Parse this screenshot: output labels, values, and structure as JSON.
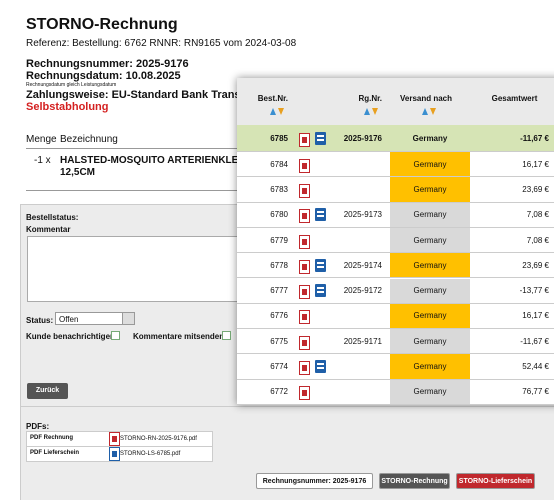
{
  "document": {
    "title": "STORNO-Rechnung",
    "reference": "Referenz: Bestellung: 6762 RNNR: RN9165 vom 2024-03-08",
    "invoice_number": "Rechnungsnummer: 2025-9176",
    "invoice_date": "Rechnungsdatum: 10.08.2025",
    "date_note": "Rechnungsdatum gleich Leistungsdatum",
    "payment": "Zahlungsweise: EU-Standard Bank Transfer",
    "shipping": "Selbstabholung",
    "items_header": {
      "qty": "Menge",
      "desc": "Bezeichnung"
    },
    "items": [
      {
        "qty": "-1 x",
        "desc": "HALSTED-MOSQUITO ARTERIENKLEMME GER",
        "desc_line2": "12,5CM"
      }
    ]
  },
  "form": {
    "status_heading": "Bestellstatus:",
    "comment_label": "Kommentar",
    "status_label": "Status:",
    "status_value": "Offen",
    "notify_label": "Kunde benachrichtigen:",
    "send_comments_label": "Kommentare mitsenden:",
    "back_button": "Zurück"
  },
  "pdfs": {
    "heading": "PDFs:",
    "rows": [
      {
        "label": "PDF Rechnung",
        "file": "STORNO-RN-2025-9176.pdf",
        "color": "#c0282d"
      },
      {
        "label": "PDF Lieferschein",
        "file": "STORNO-LS-6785.pdf",
        "color": "#1f5fa8"
      }
    ]
  },
  "footer_buttons": [
    {
      "label": "Rechnungsnummer: 2025-9176",
      "color": "#ffffff"
    },
    {
      "label": "STORNO-Rechnung",
      "color": "#555555"
    },
    {
      "label": "STORNO-Lieferschein",
      "color": "#c0282d"
    }
  ],
  "orders": {
    "columns": [
      "Best.Nr.",
      "Rg.Nr.",
      "Versand nach",
      "Gesamtwert"
    ],
    "rows": [
      {
        "order": "6785",
        "invoice": "2025-9176",
        "country": "Germany",
        "total": "-11,67 €",
        "delivery_note": true,
        "country_color": "#d6e4b5",
        "row_color": "#d6e4b5"
      },
      {
        "order": "6784",
        "invoice": null,
        "country": "Germany",
        "total": "16,17 €",
        "delivery_note": false,
        "country_color": "#ffc000",
        "row_color": "#ffffff"
      },
      {
        "order": "6783",
        "invoice": null,
        "country": "Germany",
        "total": "23,69 €",
        "delivery_note": false,
        "country_color": "#ffc000",
        "row_color": "#ffffff"
      },
      {
        "order": "6780",
        "invoice": "2025-9173",
        "country": "Germany",
        "total": "7,08 €",
        "delivery_note": true,
        "country_color": "#d9d9d9",
        "row_color": "#ffffff"
      },
      {
        "order": "6779",
        "invoice": null,
        "country": "Germany",
        "total": "7,08 €",
        "delivery_note": false,
        "country_color": "#d9d9d9",
        "row_color": "#ffffff"
      },
      {
        "order": "6778",
        "invoice": "2025-9174",
        "country": "Germany",
        "total": "23,69 €",
        "delivery_note": true,
        "country_color": "#ffc000",
        "row_color": "#ffffff"
      },
      {
        "order": "6777",
        "invoice": "2025-9172",
        "country": "Germany",
        "total": "-13,77 €",
        "delivery_note": true,
        "country_color": "#d9d9d9",
        "row_color": "#ffffff"
      },
      {
        "order": "6776",
        "invoice": null,
        "country": "Germany",
        "total": "16,17 €",
        "delivery_note": false,
        "country_color": "#ffc000",
        "row_color": "#ffffff"
      },
      {
        "order": "6775",
        "invoice": "2025-9171",
        "country": "Germany",
        "total": "-11,67 €",
        "delivery_note": false,
        "country_color": "#d9d9d9",
        "row_color": "#ffffff"
      },
      {
        "order": "6774",
        "invoice": null,
        "country": "Germany",
        "total": "52,44 €",
        "delivery_note": true,
        "country_color": "#ffc000",
        "row_color": "#ffffff"
      },
      {
        "order": "6772",
        "invoice": null,
        "country": "Germany",
        "total": "76,77 €",
        "delivery_note": false,
        "country_color": "#d9d9d9",
        "row_color": "#ffffff"
      }
    ]
  }
}
